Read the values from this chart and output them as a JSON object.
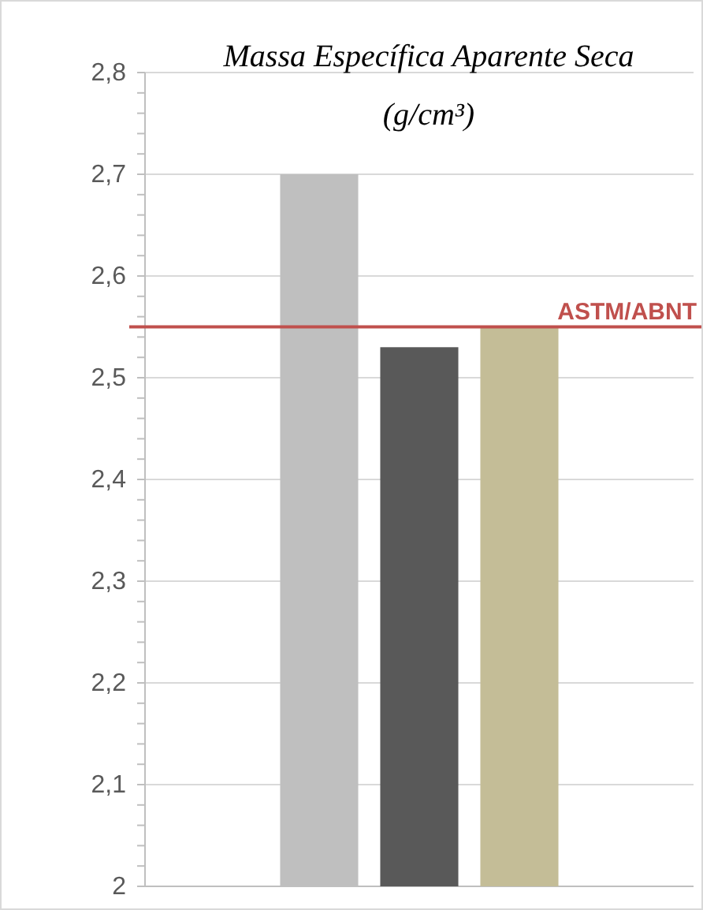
{
  "chart_data": {
    "type": "bar",
    "title": "Massa Específica Aparente Seca (g/cm³)",
    "categories": [
      null
    ],
    "series": [
      {
        "color": "#bfbfbf",
        "values": [
          2.7
        ]
      },
      {
        "color": "#595959",
        "values": [
          2.53
        ]
      },
      {
        "color": "#c4bd97",
        "values": [
          2.55
        ]
      }
    ],
    "ylim": [
      2,
      2.8
    ],
    "yticks": [
      {
        "value": 2,
        "label": "2"
      },
      {
        "value": 2.1,
        "label": "2,1"
      },
      {
        "value": 2.2,
        "label": "2,2"
      },
      {
        "value": 2.3,
        "label": "2,3"
      },
      {
        "value": 2.4,
        "label": "2,4"
      },
      {
        "value": 2.5,
        "label": "2,5"
      },
      {
        "value": 2.6,
        "label": "2,6"
      },
      {
        "value": 2.7,
        "label": "2,7"
      },
      {
        "value": 2.8,
        "label": "2,8"
      },
      {
        "value": 2.02,
        "label": null
      },
      {
        "value": 2.04,
        "label": null
      },
      {
        "value": 2.06,
        "label": null
      },
      {
        "value": 2.08,
        "label": null
      },
      {
        "value": 2.12,
        "label": null
      },
      {
        "value": 2.14,
        "label": null
      },
      {
        "value": 2.16,
        "label": null
      },
      {
        "value": 2.18,
        "label": null
      },
      {
        "value": 2.22,
        "label": null
      },
      {
        "value": 2.24,
        "label": null
      },
      {
        "value": 2.26,
        "label": null
      },
      {
        "value": 2.28,
        "label": null
      },
      {
        "value": 2.32,
        "label": null
      },
      {
        "value": 2.34,
        "label": null
      },
      {
        "value": 2.36,
        "label": null
      },
      {
        "value": 2.38,
        "label": null
      },
      {
        "value": 2.42,
        "label": null
      },
      {
        "value": 2.44,
        "label": null
      },
      {
        "value": 2.46,
        "label": null
      },
      {
        "value": 2.48,
        "label": null
      },
      {
        "value": 2.52,
        "label": null
      },
      {
        "value": 2.54,
        "label": null
      },
      {
        "value": 2.56,
        "label": null
      },
      {
        "value": 2.58,
        "label": null
      },
      {
        "value": 2.62,
        "label": null
      },
      {
        "value": 2.64,
        "label": null
      },
      {
        "value": 2.66,
        "label": null
      },
      {
        "value": 2.68,
        "label": null
      },
      {
        "value": 2.72,
        "label": null
      },
      {
        "value": 2.74,
        "label": null
      },
      {
        "value": 2.76,
        "label": null
      },
      {
        "value": 2.78,
        "label": null
      }
    ],
    "grid": "y",
    "ref_lines": [
      {
        "axis": "y",
        "value": 2.55,
        "label": "ASTM/ABNT",
        "color": "#c0504d"
      }
    ]
  }
}
